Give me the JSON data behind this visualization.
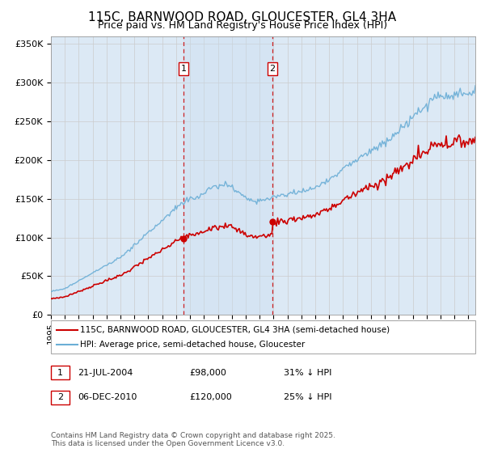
{
  "title": "115C, BARNWOOD ROAD, GLOUCESTER, GL4 3HA",
  "subtitle": "Price paid vs. HM Land Registry's House Price Index (HPI)",
  "ylabel_ticks": [
    "£0",
    "£50K",
    "£100K",
    "£150K",
    "£200K",
    "£250K",
    "£300K",
    "£350K"
  ],
  "ytick_values": [
    0,
    50000,
    100000,
    150000,
    200000,
    250000,
    300000,
    350000
  ],
  "ylim": [
    0,
    360000
  ],
  "xlim_start": 1995.0,
  "xlim_end": 2025.5,
  "purchase1_date": 2004.54,
  "purchase1_label": "1",
  "purchase1_price": 98000,
  "purchase2_date": 2010.92,
  "purchase2_label": "2",
  "purchase2_price": 120000,
  "hpi_color": "#6baed6",
  "price_color": "#cc0000",
  "vline_color": "#cc0000",
  "grid_color": "#cccccc",
  "background_color": "#dce9f5",
  "shade_color": "#c8daf0",
  "legend1_label": "115C, BARNWOOD ROAD, GLOUCESTER, GL4 3HA (semi-detached house)",
  "legend2_label": "HPI: Average price, semi-detached house, Gloucester",
  "table_row1": [
    "1",
    "21-JUL-2004",
    "£98,000",
    "31% ↓ HPI"
  ],
  "table_row2": [
    "2",
    "06-DEC-2010",
    "£120,000",
    "25% ↓ HPI"
  ],
  "footnote": "Contains HM Land Registry data © Crown copyright and database right 2025.\nThis data is licensed under the Open Government Licence v3.0.",
  "title_fontsize": 11,
  "subtitle_fontsize": 9,
  "tick_fontsize": 8,
  "legend_fontsize": 7.5,
  "table_fontsize": 8,
  "footnote_fontsize": 6.5
}
